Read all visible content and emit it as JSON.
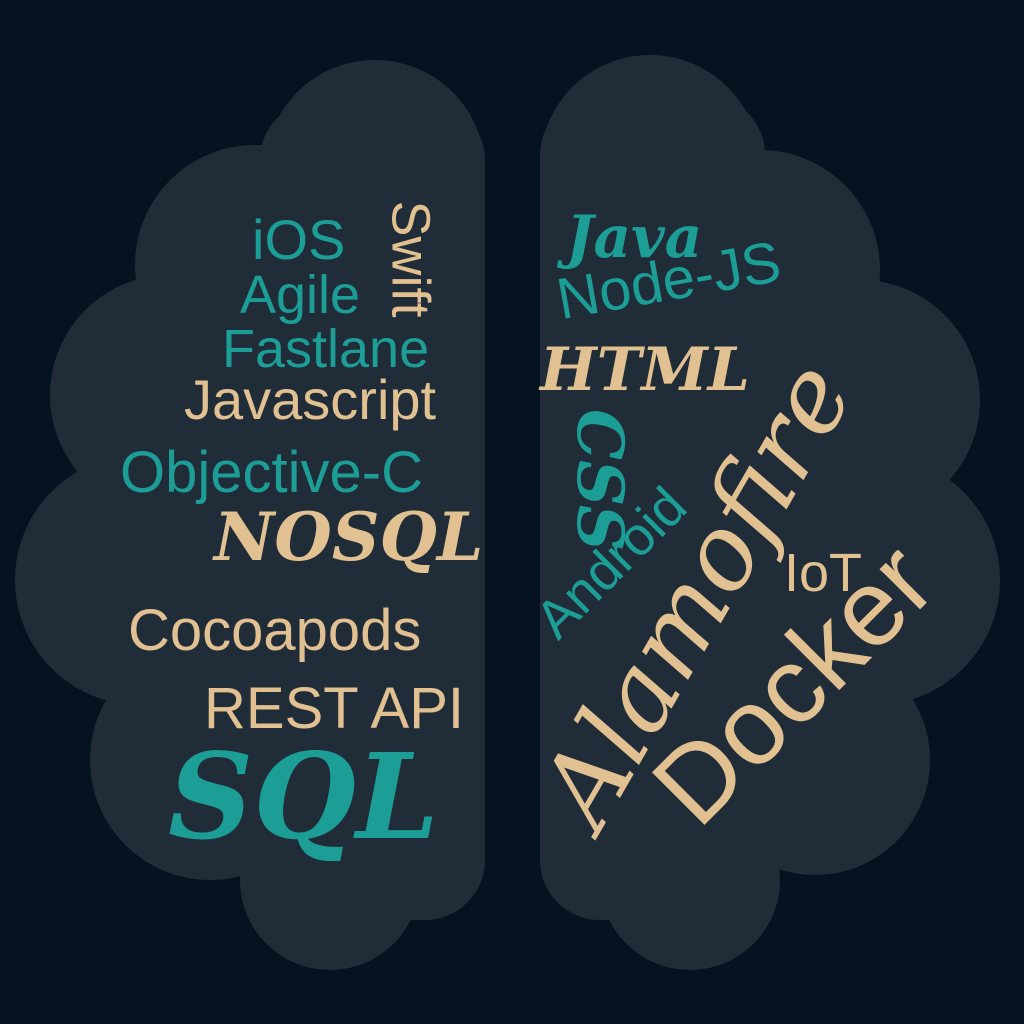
{
  "colors": {
    "background": "#051320",
    "brain": "#202d38",
    "teal": "#1c9d96",
    "tan": "#e1c092"
  },
  "left_words": {
    "ios": "iOS",
    "swift": "Swift",
    "agile": "Agile",
    "fastlane": "Fastlane",
    "javascript": "Javascript",
    "objective_c": "Objective-C",
    "nosql": "NOSQL",
    "cocoapods": "Cocoapods",
    "rest_api": "REST API",
    "sql": "SQL"
  },
  "right_words": {
    "java": "Java",
    "node_js": "Node-JS",
    "html": "HTML",
    "css": "CSS",
    "alamofire": "Alamofire",
    "android": "Android",
    "iot": "IoT",
    "docker": "Docker"
  }
}
